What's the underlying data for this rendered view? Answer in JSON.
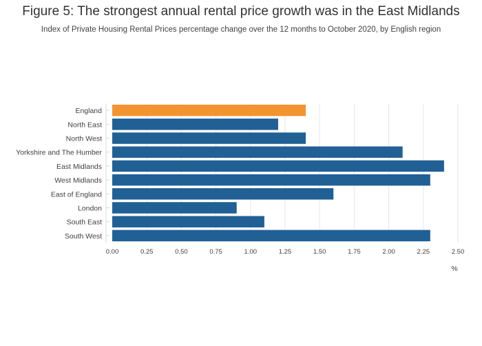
{
  "chart_data": {
    "type": "bar",
    "orientation": "horizontal",
    "title": "Figure 5: The strongest annual rental price growth was in the East Midlands",
    "subtitle": "Index of Private Housing Rental Prices percentage change over the 12 months to October 2020, by English region",
    "categories": [
      "England",
      "North East",
      "North West",
      "Yorkshire and The Humber",
      "East Midlands",
      "West Midlands",
      "East of England",
      "London",
      "South East",
      "South West"
    ],
    "values": [
      1.4,
      1.2,
      1.4,
      2.1,
      2.4,
      2.3,
      1.6,
      0.9,
      1.1,
      2.3
    ],
    "highlight": "England",
    "xlabel": "%",
    "xlim": [
      0,
      2.5
    ],
    "xticks": [
      "0.00",
      "0.25",
      "0.50",
      "0.75",
      "1.00",
      "1.25",
      "1.50",
      "1.75",
      "2.00",
      "2.25",
      "2.50"
    ],
    "grid": true,
    "colors": {
      "highlight": "#f39431",
      "default": "#206095",
      "grid": "#e6e6e6"
    }
  }
}
